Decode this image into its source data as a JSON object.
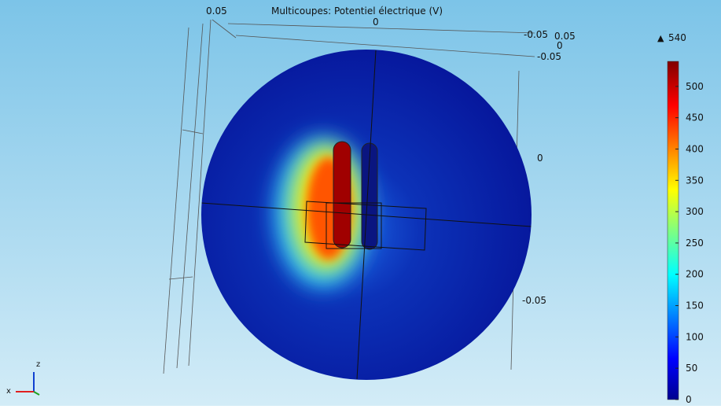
{
  "title": "Multicoupes: Potentiel électrique (V)",
  "axis_labels": [
    "0.05",
    "0",
    "-0.05",
    "0.05",
    "0",
    "-0.05",
    "0",
    "-0.05"
  ],
  "triad": {
    "z": "z",
    "x": "x"
  },
  "colorbar": {
    "max": 540,
    "ticks": [
      0,
      50,
      100,
      150,
      200,
      250,
      300,
      350,
      400,
      450,
      500
    ]
  }
}
